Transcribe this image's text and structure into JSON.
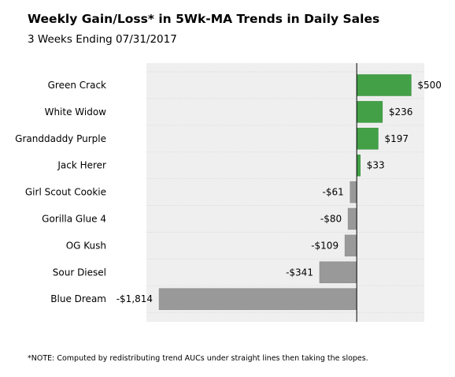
{
  "title": "Weekly Gain/Loss* in 5Wk-MA Trends in Daily Sales",
  "subtitle": "3 Weeks Ending 07/31/2017",
  "note": "*NOTE: Computed by redistributing trend AUCs under straight lines then taking the slopes.",
  "colors": {
    "positive": "#43a047",
    "negative": "#999999",
    "plot_bg": "#efefef",
    "grid": "#d9d9d9",
    "zero_line": "#000000"
  },
  "chart_data": {
    "type": "bar",
    "orientation": "horizontal",
    "categories": [
      "Green Crack",
      "White Widow",
      "Granddaddy Purple",
      "Jack Herer",
      "Girl Scout Cookie",
      "Gorilla Glue 4",
      "OG Kush",
      "Sour Diesel",
      "Blue Dream"
    ],
    "values": [
      500,
      236,
      197,
      33,
      -61,
      -80,
      -109,
      -341,
      -1814
    ],
    "value_labels": [
      "$500",
      "$236",
      "$197",
      "$33",
      "-$61",
      "-$80",
      "-$109",
      "-$341",
      "-$1,814"
    ],
    "xlim": [
      -1930,
      620
    ],
    "grid": true,
    "xlabel": "",
    "ylabel": ""
  }
}
